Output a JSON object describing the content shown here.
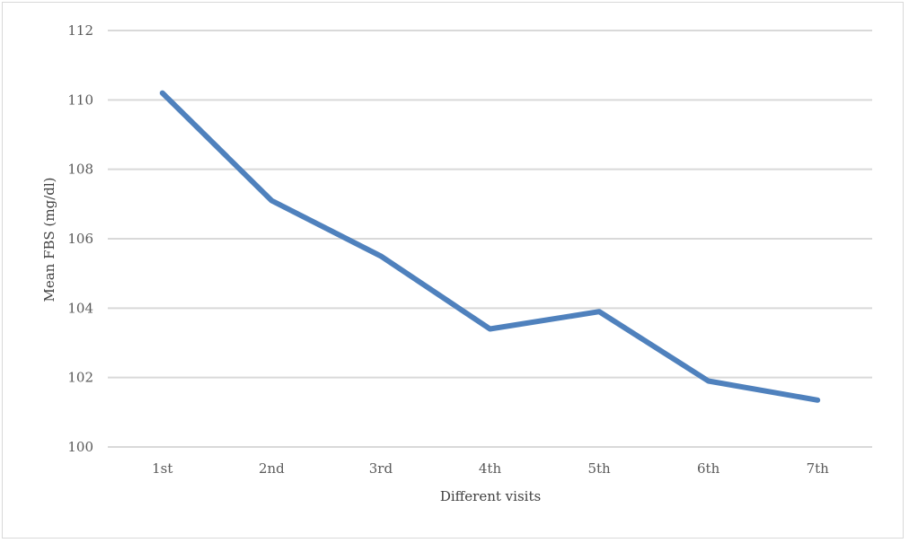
{
  "chart_data": {
    "type": "line",
    "title": "",
    "xlabel": "Different visits",
    "ylabel": "Mean FBS (mg/dl)",
    "categories": [
      "1st",
      "2nd",
      "3rd",
      "4th",
      "5th",
      "6th",
      "7th"
    ],
    "series": [
      {
        "values": [
          110.2,
          107.1,
          105.5,
          103.4,
          103.9,
          101.9,
          101.35
        ],
        "color": "#4f81bd"
      }
    ],
    "ylim": [
      100,
      112
    ],
    "yticks": [
      100,
      102,
      104,
      106,
      108,
      110,
      112
    ],
    "grid": true,
    "legend": "none"
  }
}
